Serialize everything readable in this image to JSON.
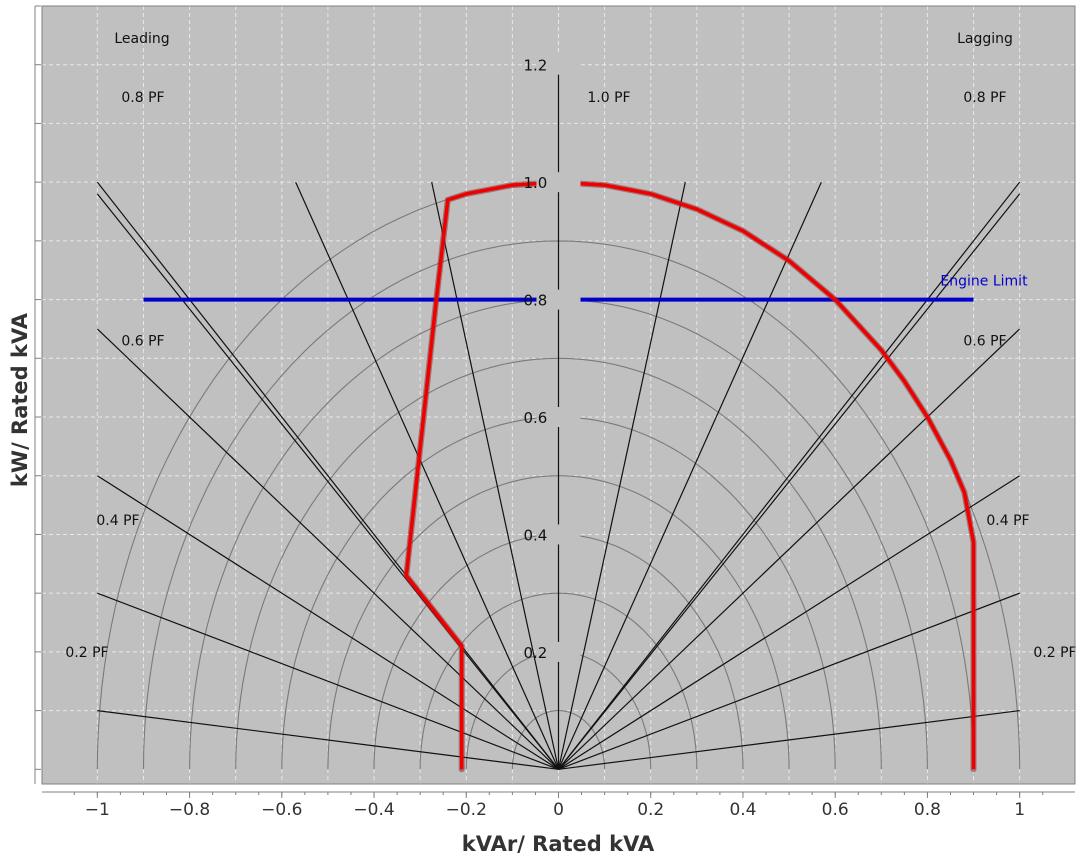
{
  "chart_data": {
    "type": "line",
    "title": "",
    "xlabel": "kVAr/ Rated kVA",
    "ylabel": "kW/ Rated kVA",
    "xlim": [
      -1.12,
      1.12
    ],
    "ylim": [
      -0.025,
      1.3
    ],
    "grid": true,
    "x_ticks": [
      "-1",
      "-0.8",
      "-0.6",
      "-0.4",
      "-0.2",
      "0",
      "0.2",
      "0.4",
      "0.6",
      "0.8",
      "1"
    ],
    "y_ticks": [
      "1.2",
      "1.0",
      "0.8",
      "0.6",
      "0.4",
      "0.2"
    ],
    "side_labels": {
      "left": "Leading",
      "right": "Lagging"
    },
    "pf_labels": [
      {
        "text": "0.8 PF",
        "side": "left",
        "y": 1.145
      },
      {
        "text": "1.0 PF",
        "side": "center",
        "y": 1.145
      },
      {
        "text": "0.8 PF",
        "side": "right",
        "y": 1.145
      },
      {
        "text": "0.6 PF",
        "side": "left",
        "y": 0.73
      },
      {
        "text": "0.6 PF",
        "side": "right",
        "y": 0.73
      },
      {
        "text": "0.4 PF",
        "side": "left",
        "y": 0.425
      },
      {
        "text": "0.4 PF",
        "side": "right",
        "y": 0.425
      },
      {
        "text": "0.2 PF",
        "side": "left",
        "y": 0.2
      },
      {
        "text": "0.2 PF",
        "side": "right",
        "y": 0.2
      }
    ],
    "arc_radii": [
      0.1,
      0.2,
      0.3,
      0.4,
      0.5,
      0.6,
      0.7,
      0.8,
      0.9,
      1.0
    ],
    "pf_lines": [
      [
        -1.0,
        0.1
      ],
      [
        -1.0,
        0.3
      ],
      [
        -1.0,
        0.5
      ],
      [
        -1.0,
        0.75
      ],
      [
        -1.0,
        0.98
      ],
      [
        -1.0,
        1.0
      ],
      [
        -0.57,
        1.0
      ],
      [
        -0.275,
        1.0
      ],
      [
        0.0,
        1.2
      ],
      [
        0.275,
        1.0
      ],
      [
        0.57,
        1.0
      ],
      [
        1.0,
        1.0
      ],
      [
        1.0,
        0.98
      ],
      [
        1.0,
        0.75
      ],
      [
        1.0,
        0.5
      ],
      [
        1.0,
        0.3
      ],
      [
        1.0,
        0.1
      ]
    ],
    "series": [
      {
        "name": "Engine Limit",
        "color": "#0000cc",
        "points": [
          [
            -0.9,
            0.8
          ],
          [
            0.9,
            0.8
          ]
        ]
      },
      {
        "color": "#ee0000",
        "points": [
          [
            -0.21,
            0.0
          ],
          [
            -0.21,
            0.21
          ],
          [
            -0.33,
            0.33
          ],
          [
            -0.265,
            0.8
          ],
          [
            -0.24,
            0.97
          ],
          [
            -0.2,
            0.98
          ],
          [
            -0.1,
            0.995
          ],
          [
            0.0,
            1.0
          ],
          [
            0.1,
            0.995
          ],
          [
            0.2,
            0.98
          ],
          [
            0.3,
            0.954
          ],
          [
            0.4,
            0.917
          ],
          [
            0.5,
            0.866
          ],
          [
            0.6,
            0.8
          ],
          [
            0.7,
            0.714
          ],
          [
            0.75,
            0.661
          ],
          [
            0.8,
            0.6
          ],
          [
            0.85,
            0.527
          ],
          [
            0.88,
            0.472
          ],
          [
            0.9,
            0.387
          ],
          [
            0.9,
            0.0
          ]
        ]
      }
    ]
  }
}
